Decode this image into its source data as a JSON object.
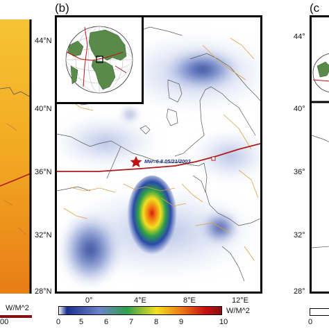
{
  "panels": {
    "b": {
      "letter": "(b)"
    },
    "c": {
      "letter": "(c"
    }
  },
  "lat_labels_b": [
    "44°N",
    "40°N",
    "36°N",
    "32°N",
    "28°N"
  ],
  "lon_labels_b": [
    "0°",
    "4°E",
    "8°E",
    "12°E"
  ],
  "lat_labels_c": [
    "44°",
    "40°",
    "36°",
    "32°",
    "28°"
  ],
  "left_panel": {
    "unit": "W/M^2",
    "tick": "00"
  },
  "epicenter_label": "Mw=6.8 05/21/2003",
  "colorbar": {
    "unit": "W/M^2",
    "ticks": [
      "0",
      "5",
      "6",
      "7",
      "8",
      "9",
      "10"
    ],
    "stops": [
      "#ffffff",
      "#1b2f8f",
      "#6c83c9",
      "#2e9f4a",
      "#f3e020",
      "#f07a12",
      "#c81010",
      "#8a0f12"
    ]
  },
  "colors": {
    "boundary": "#b01a1a",
    "faults": "#e0a040",
    "coast": "#555555",
    "left_panel_fill": "#f2a823",
    "epicenter_star": "#c01212"
  }
}
